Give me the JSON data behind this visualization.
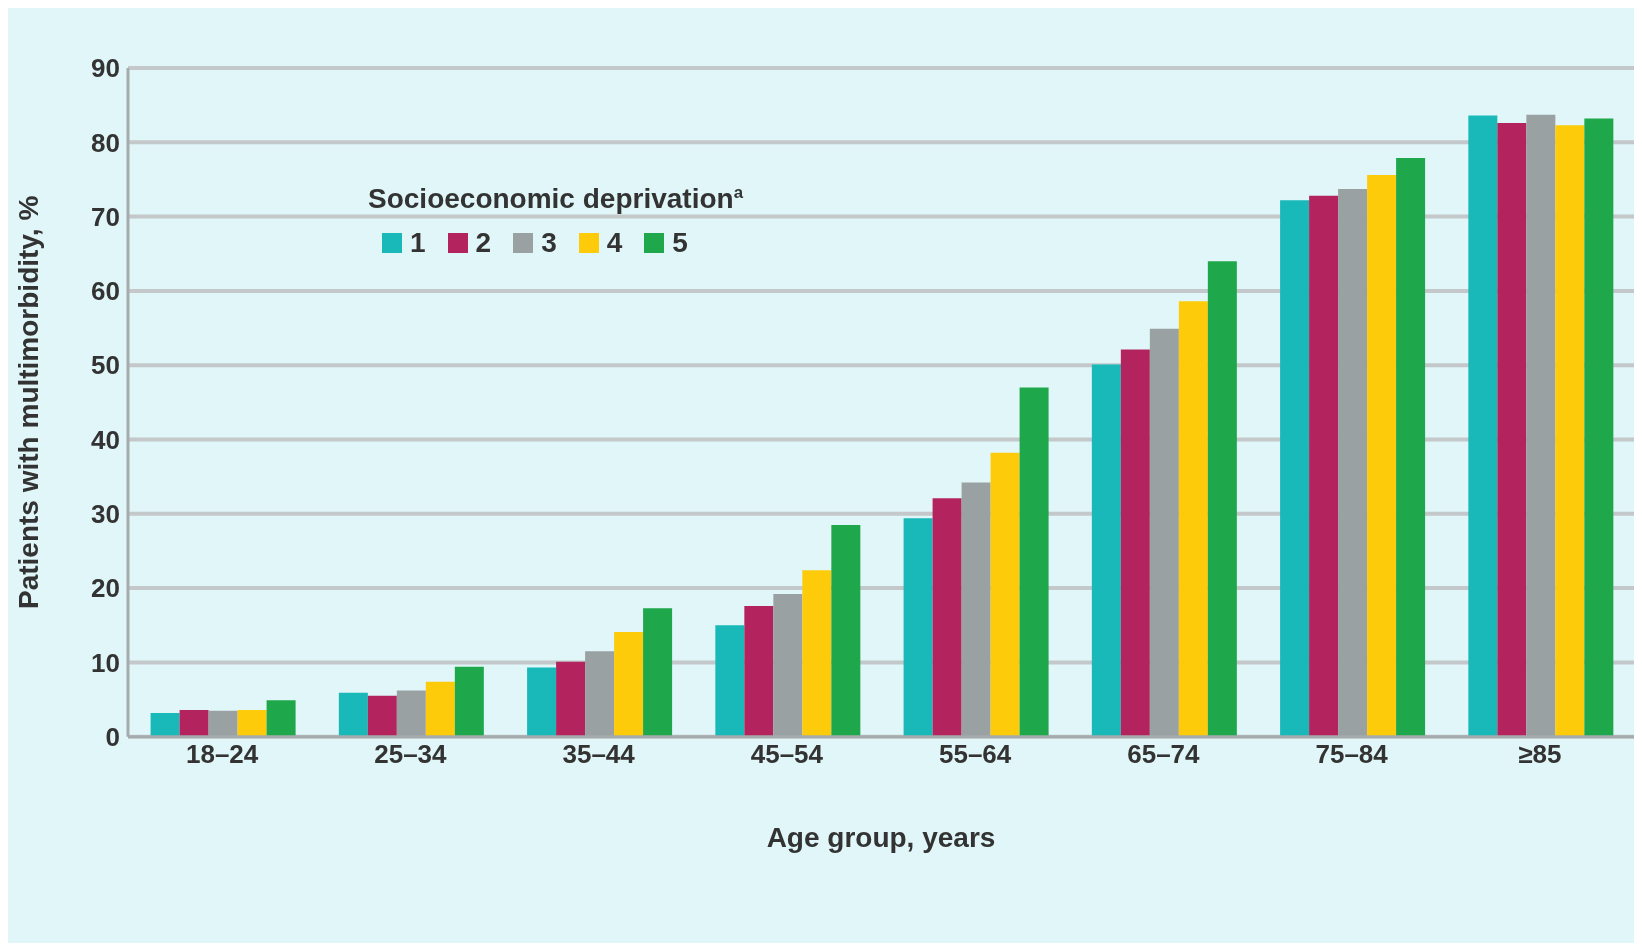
{
  "chart_data": {
    "type": "bar",
    "xlabel": "Age group, years",
    "ylabel": "Patients with multimorbidity, %",
    "legend_title": "Socioeconomic deprivation$^{a}$",
    "categories": [
      "18–24",
      "25–34",
      "35–44",
      "45–54",
      "55–64",
      "65–74",
      "75–84",
      "≥85"
    ],
    "series": [
      {
        "name": "1",
        "color": "#19b9b9",
        "values": [
          3.2,
          5.9,
          9.3,
          15.0,
          29.4,
          50.1,
          72.2,
          83.6
        ]
      },
      {
        "name": "2",
        "color": "#b3245e",
        "values": [
          3.6,
          5.5,
          10.1,
          17.6,
          32.1,
          52.1,
          72.8,
          82.6
        ]
      },
      {
        "name": "3",
        "color": "#99a1a3",
        "values": [
          3.5,
          6.2,
          11.5,
          19.2,
          34.2,
          54.9,
          73.7,
          83.7
        ]
      },
      {
        "name": "4",
        "color": "#fdcb0a",
        "values": [
          3.6,
          7.4,
          14.1,
          22.4,
          38.2,
          58.6,
          75.6,
          82.3
        ]
      },
      {
        "name": "5",
        "color": "#1ea74b",
        "values": [
          4.9,
          9.4,
          17.3,
          28.5,
          47.0,
          64.0,
          77.9,
          83.2
        ]
      }
    ],
    "ylim": [
      0,
      90
    ],
    "yticks": [
      0,
      10,
      20,
      30,
      40,
      50,
      60,
      70,
      80,
      90
    ],
    "grid": "y",
    "legend": "top left"
  }
}
